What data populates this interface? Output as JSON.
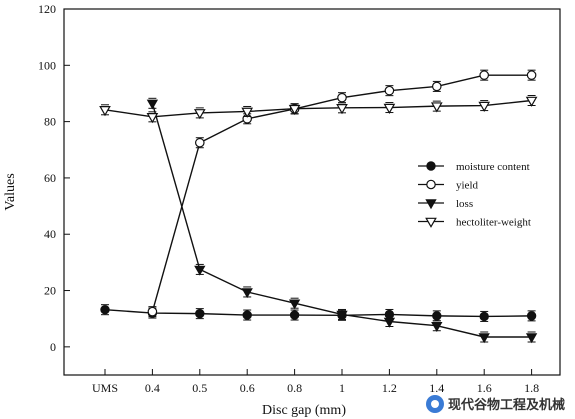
{
  "chart_data": {
    "type": "line",
    "xlabel": "Disc gap (mm)",
    "ylabel": "Values",
    "categories": [
      "UMS",
      "0.4",
      "0.5",
      "0.6",
      "0.8",
      "1",
      "1.2",
      "1.4",
      "1.6",
      "1.8"
    ],
    "ylim": [
      -10,
      120
    ],
    "yticks": [
      0,
      20,
      40,
      60,
      80,
      100,
      120
    ],
    "grid": false,
    "legend_position": "right-middle",
    "series": [
      {
        "name": "moisture content",
        "marker": "circle-filled",
        "values": [
          13.2,
          12,
          11.8,
          11.3,
          11.3,
          11.2,
          11.5,
          11,
          10.8,
          11
        ]
      },
      {
        "name": "yield",
        "marker": "circle-open",
        "values": [
          null,
          12.5,
          72.5,
          81,
          84.5,
          88.5,
          91,
          92.5,
          96.5,
          96.5
        ]
      },
      {
        "name": "loss",
        "marker": "triangle-down-filled",
        "values": [
          null,
          86.5,
          27.5,
          19.5,
          15.5,
          11.5,
          9,
          7.5,
          3.5,
          3.5
        ]
      },
      {
        "name": "hectoliter-weight",
        "marker": "triangle-down-open",
        "values": [
          84.2,
          81.7,
          83.1,
          83.6,
          84.6,
          84.9,
          85,
          85.5,
          85.7,
          87.5
        ]
      }
    ]
  },
  "watermark": {
    "text": "现代谷物工程及机械",
    "icon": "wechat-style-icon"
  }
}
